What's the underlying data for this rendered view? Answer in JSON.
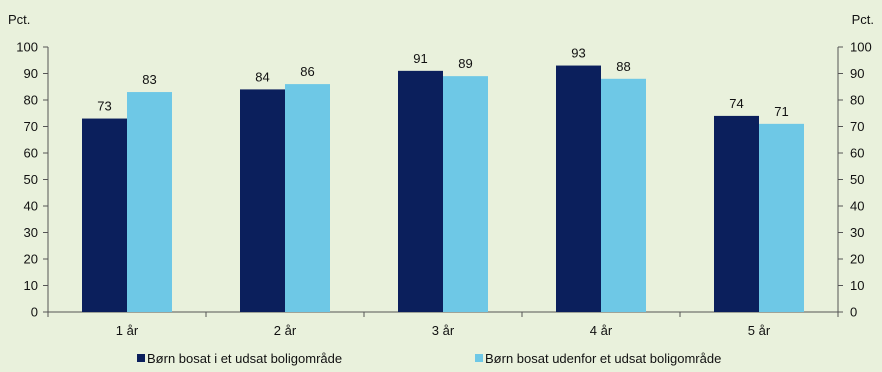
{
  "chart_data": {
    "type": "bar",
    "unit_left": "Pct.",
    "unit_right": "Pct.",
    "categories": [
      "1 år",
      "2 år",
      "3 år",
      "4 år",
      "5 år"
    ],
    "series": [
      {
        "name": "Børn bosat i et udsat boligområde",
        "values": [
          73,
          84,
          91,
          93,
          74
        ],
        "color": "#0b1f5c"
      },
      {
        "name": "Børn bosat udenfor et udsat boligområde",
        "values": [
          83,
          86,
          89,
          88,
          71
        ],
        "color": "#6ec8e6"
      }
    ],
    "ylim": [
      0,
      100
    ],
    "yticks": [
      0,
      10,
      20,
      30,
      40,
      50,
      60,
      70,
      80,
      90,
      100
    ],
    "grid": false,
    "legend_position": "bottom"
  }
}
